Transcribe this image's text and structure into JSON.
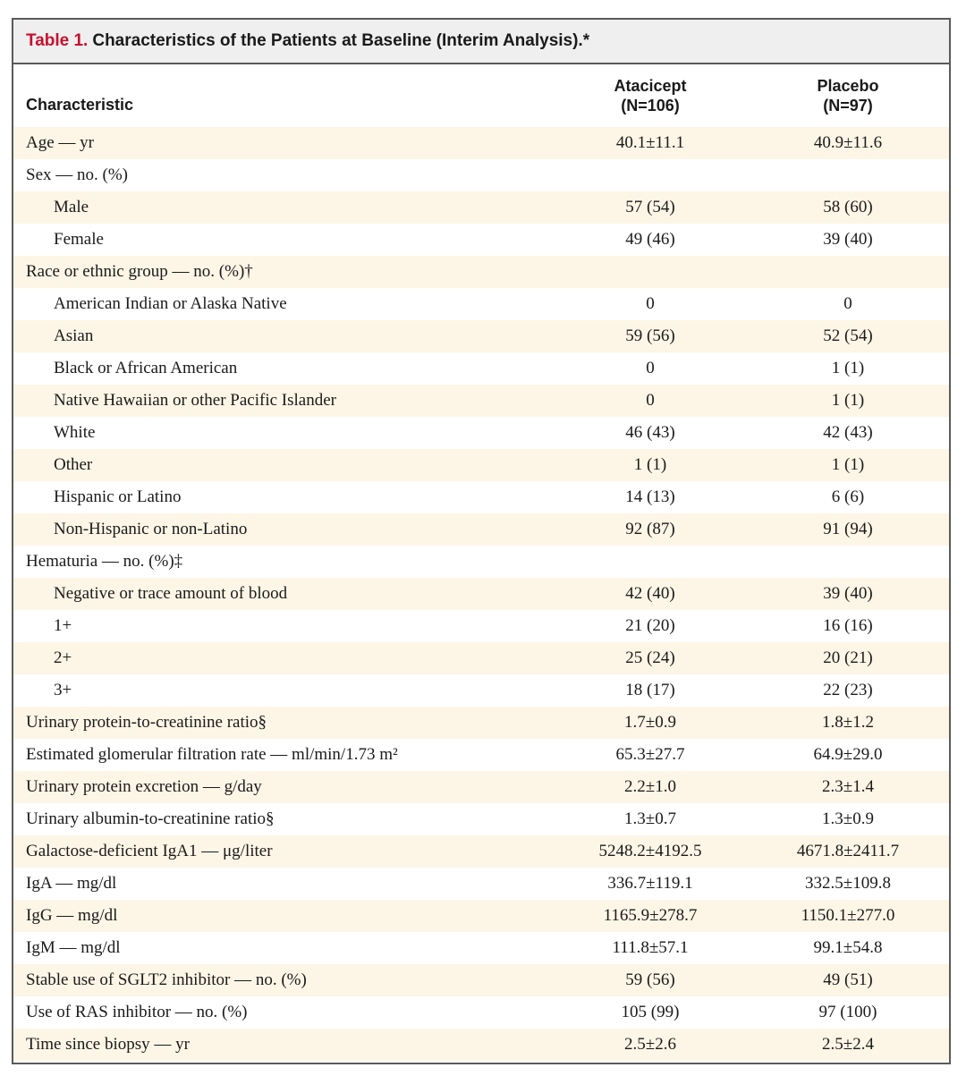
{
  "title": {
    "label": "Table 1.",
    "text": "Characteristics of the Patients at Baseline (Interim Analysis).*"
  },
  "header": {
    "characteristic": "Characteristic",
    "atacicept_name": "Atacicept",
    "atacicept_n": "(N=106)",
    "placebo_name": "Placebo",
    "placebo_n": "(N=97)"
  },
  "rows": [
    {
      "label": "Age — yr",
      "atacicept": "40.1±11.1",
      "placebo": "40.9±11.6",
      "indent": false
    },
    {
      "label": "Sex — no. (%)",
      "atacicept": "",
      "placebo": "",
      "indent": false
    },
    {
      "label": "Male",
      "atacicept": "57 (54)",
      "placebo": "58 (60)",
      "indent": true
    },
    {
      "label": "Female",
      "atacicept": "49 (46)",
      "placebo": "39 (40)",
      "indent": true
    },
    {
      "label": "Race or ethnic group — no. (%)†",
      "atacicept": "",
      "placebo": "",
      "indent": false
    },
    {
      "label": "American Indian or Alaska Native",
      "atacicept": "0",
      "placebo": "0",
      "indent": true
    },
    {
      "label": "Asian",
      "atacicept": "59 (56)",
      "placebo": "52 (54)",
      "indent": true
    },
    {
      "label": "Black or African American",
      "atacicept": "0",
      "placebo": "1 (1)",
      "indent": true
    },
    {
      "label": "Native Hawaiian or other Pacific Islander",
      "atacicept": "0",
      "placebo": "1 (1)",
      "indent": true
    },
    {
      "label": "White",
      "atacicept": "46 (43)",
      "placebo": "42 (43)",
      "indent": true
    },
    {
      "label": "Other",
      "atacicept": "1 (1)",
      "placebo": "1 (1)",
      "indent": true
    },
    {
      "label": "Hispanic or Latino",
      "atacicept": "14 (13)",
      "placebo": "6 (6)",
      "indent": true
    },
    {
      "label": "Non-Hispanic or non-Latino",
      "atacicept": "92 (87)",
      "placebo": "91 (94)",
      "indent": true
    },
    {
      "label": "Hematuria — no. (%)‡",
      "atacicept": "",
      "placebo": "",
      "indent": false
    },
    {
      "label": "Negative or trace amount of blood",
      "atacicept": "42 (40)",
      "placebo": "39 (40)",
      "indent": true
    },
    {
      "label": "1+",
      "atacicept": "21 (20)",
      "placebo": "16 (16)",
      "indent": true
    },
    {
      "label": "2+",
      "atacicept": "25 (24)",
      "placebo": "20 (21)",
      "indent": true
    },
    {
      "label": "3+",
      "atacicept": "18 (17)",
      "placebo": "22 (23)",
      "indent": true
    },
    {
      "label": "Urinary protein-to-creatinine ratio§",
      "atacicept": "1.7±0.9",
      "placebo": "1.8±1.2",
      "indent": false
    },
    {
      "label": "Estimated glomerular filtration rate — ml/min/1.73 m²",
      "atacicept": "65.3±27.7",
      "placebo": "64.9±29.0",
      "indent": false
    },
    {
      "label": "Urinary protein excretion — g/day",
      "atacicept": "2.2±1.0",
      "placebo": "2.3±1.4",
      "indent": false
    },
    {
      "label": "Urinary albumin-to-creatinine ratio§",
      "atacicept": "1.3±0.7",
      "placebo": "1.3±0.9",
      "indent": false
    },
    {
      "label": "Galactose-deficient IgA1 — μg/liter",
      "atacicept": "5248.2±4192.5",
      "placebo": "4671.8±2411.7",
      "indent": false
    },
    {
      "label": "IgA — mg/dl",
      "atacicept": "336.7±119.1",
      "placebo": "332.5±109.8",
      "indent": false
    },
    {
      "label": "IgG — mg/dl",
      "atacicept": "1165.9±278.7",
      "placebo": "1150.1±277.0",
      "indent": false
    },
    {
      "label": "IgM — mg/dl",
      "atacicept": "111.8±57.1",
      "placebo": "99.1±54.8",
      "indent": false
    },
    {
      "label": "Stable use of SGLT2 inhibitor — no. (%)",
      "atacicept": "59 (56)",
      "placebo": "49 (51)",
      "indent": false
    },
    {
      "label": "Use of RAS inhibitor — no. (%)",
      "atacicept": "105 (99)",
      "placebo": "97 (100)",
      "indent": false
    },
    {
      "label": "Time since biopsy — yr",
      "atacicept": "2.5±2.6",
      "placebo": "2.5±2.4",
      "indent": false
    }
  ]
}
